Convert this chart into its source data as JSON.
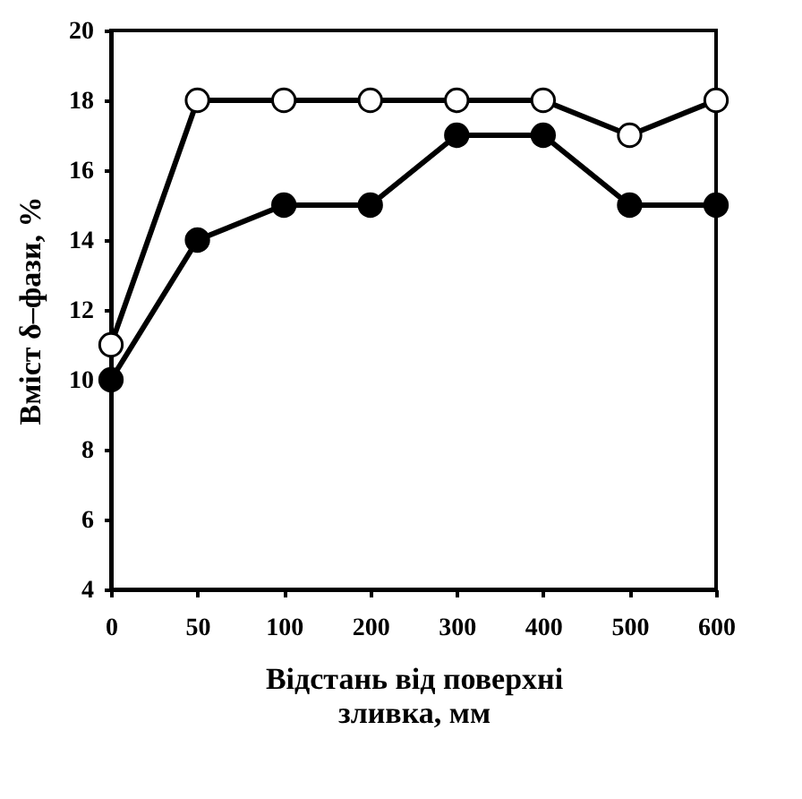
{
  "chart_data": {
    "type": "line",
    "xlabel": "Відстань від поверхні зливка, мм",
    "ylabel": "Вміст δ–фази, %",
    "categories": [
      "0",
      "50",
      "100",
      "200",
      "300",
      "400",
      "500",
      "600"
    ],
    "series": [
      {
        "color": "#000000",
        "colors": [
          "#ffffff",
          "#ffffff",
          "#ffffff",
          "#ffffff",
          "#ffffff",
          "#ffffff",
          "#ffffff",
          "#ffffff"
        ],
        "values": [
          11,
          18,
          18,
          18,
          18,
          18,
          17,
          18
        ]
      },
      {
        "color": "#000000",
        "values": [
          10,
          14,
          15,
          15,
          17,
          17,
          15,
          15
        ]
      }
    ],
    "ylim": [
      4,
      20
    ],
    "yticks": [
      4,
      6,
      8,
      10,
      12,
      14,
      16,
      18,
      20
    ],
    "grid": false,
    "marker": "circle",
    "line_style": "solid"
  }
}
